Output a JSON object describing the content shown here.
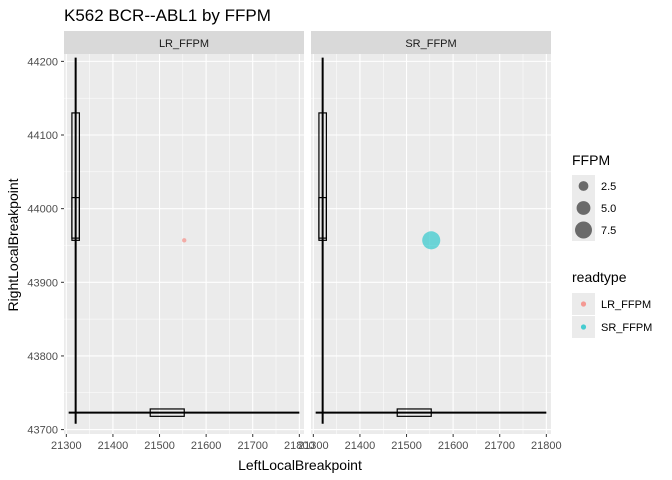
{
  "chart_data": {
    "type": "scatter",
    "title": "K562 BCR--ABL1 by FFPM",
    "xlabel": "LeftLocalBreakpoint",
    "ylabel": "RightLocalBreakpoint",
    "xlim": [
      21295,
      21810
    ],
    "ylim": [
      43694,
      44210
    ],
    "x_ticks": [
      21300,
      21400,
      21500,
      21600,
      21700,
      21800
    ],
    "y_ticks": [
      43700,
      43800,
      43900,
      44000,
      44100,
      44200
    ],
    "grid": true,
    "legend_position": "right",
    "panels": [
      {
        "strip": "LR_FFPM",
        "points": [
          {
            "x": 21553,
            "y": 43957,
            "ffpm": 0.5,
            "readtype": "LR_FFPM"
          }
        ]
      },
      {
        "strip": "SR_FFPM",
        "points": [
          {
            "x": 21553,
            "y": 43957,
            "ffpm": 8.5,
            "readtype": "SR_FFPM"
          }
        ]
      }
    ],
    "overlays": {
      "vertical_line": {
        "x": 21320,
        "y_from": 43708,
        "y_to": 44205
      },
      "horizontal_line": {
        "y": 43723,
        "x_from": 21305,
        "x_to": 21800
      },
      "vertical_boxes": [
        {
          "x_from": 21312,
          "x_to": 21328,
          "y_from": 43957,
          "y_to": 44130
        },
        {
          "x_from": 21312,
          "x_to": 21328,
          "y_from": 43960,
          "y_to": 44015
        }
      ],
      "horizontal_box": {
        "x_from": 21480,
        "x_to": 21553,
        "y_from": 43718,
        "y_to": 43728
      }
    },
    "legends": {
      "size": {
        "title": "FFPM",
        "entries": [
          {
            "label": "2.5",
            "value": 2.5
          },
          {
            "label": "5.0",
            "value": 5.0
          },
          {
            "label": "7.5",
            "value": 7.5
          }
        ]
      },
      "color": {
        "title": "readtype",
        "entries": [
          {
            "label": "LR_FFPM",
            "color": "#F8766D"
          },
          {
            "label": "SR_FFPM",
            "color": "#00BFC4"
          }
        ]
      }
    },
    "colors": {
      "panel_bg": "#EBEBEB",
      "strip_bg": "#D9D9D9",
      "grid_major": "#FFFFFF",
      "size_legend_point": "#000000"
    }
  }
}
